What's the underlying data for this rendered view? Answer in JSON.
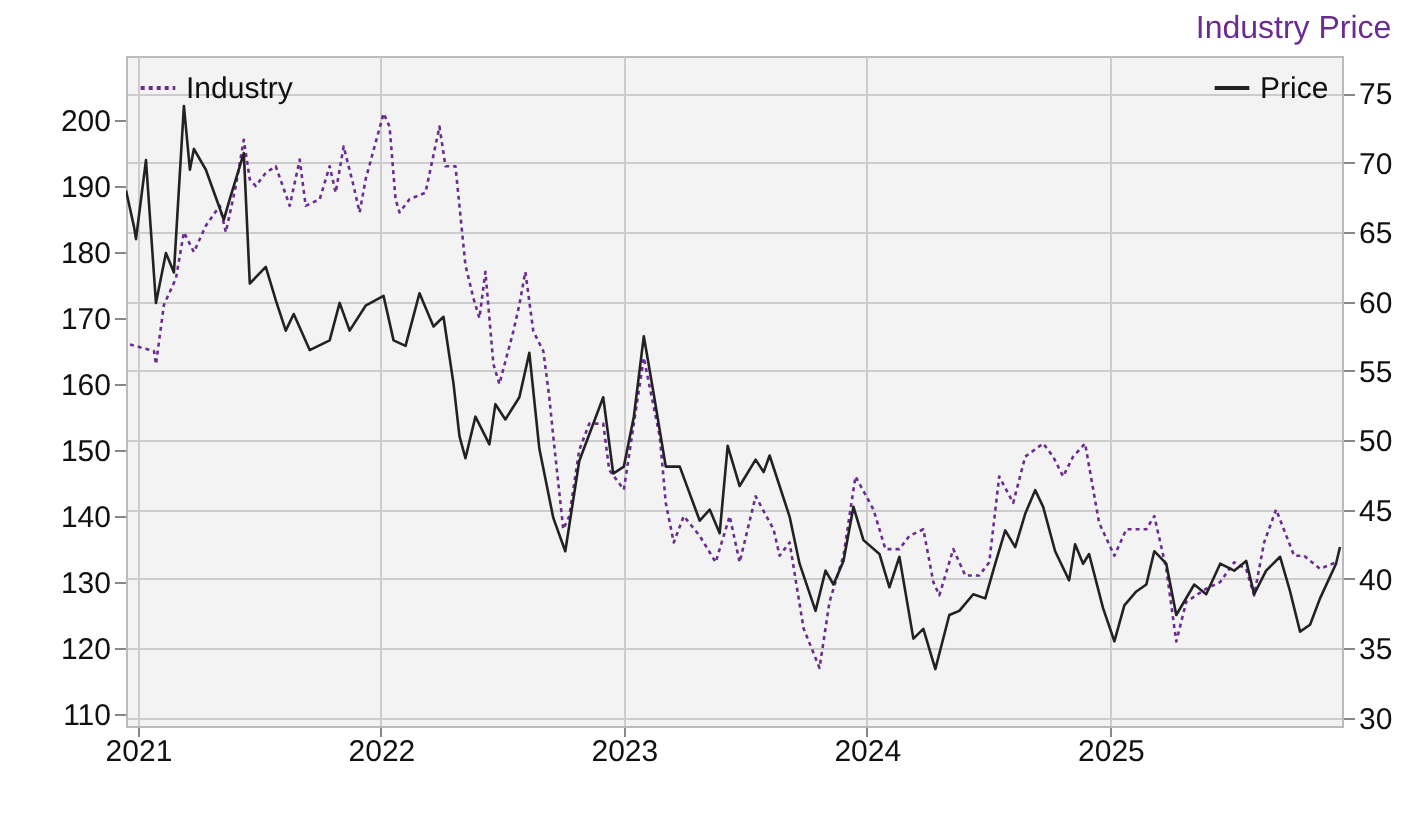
{
  "chart_data": {
    "type": "line",
    "title": "Industry Price",
    "xlim": [
      "2020-12-14",
      "2025-12-15"
    ],
    "xticks": [
      "2021",
      "2022",
      "2023",
      "2024",
      "2025"
    ],
    "ylim": [
      108.2,
      209.7
    ],
    "yticks": [
      110,
      120,
      130,
      140,
      150,
      160,
      170,
      180,
      190,
      200
    ],
    "y2lim": [
      29.4,
      77.7
    ],
    "y2ticks": [
      30,
      35,
      40,
      45,
      50,
      55,
      60,
      65,
      70,
      75
    ],
    "grid": true,
    "legend": "top",
    "marker": "none",
    "series": [
      {
        "name": "Industry",
        "color": "#6b2c91",
        "line_style": "dotted",
        "x": [
          "2020-12-20",
          "2021-01-25",
          "2021-01-28",
          "2021-02-09",
          "2021-02-27",
          "2021-03-11",
          "2021-03-26",
          "2021-04-13",
          "2021-05-04",
          "2021-05-13",
          "2021-05-28",
          "2021-06-09",
          "2021-06-18",
          "2021-06-27",
          "2021-07-12",
          "2021-07-27",
          "2021-08-17",
          "2021-09-01",
          "2021-09-10",
          "2021-10-01",
          "2021-10-16",
          "2021-10-25",
          "2021-11-06",
          "2021-11-21",
          "2021-11-30",
          "2021-12-09",
          "2022-01-05",
          "2022-01-14",
          "2022-01-23",
          "2022-01-29",
          "2022-02-13",
          "2022-03-09",
          "2022-03-30",
          "2022-04-08",
          "2022-04-23",
          "2022-05-08",
          "2022-05-20",
          "2022-05-29",
          "2022-06-07",
          "2022-06-19",
          "2022-06-28",
          "2022-07-19",
          "2022-07-28",
          "2022-08-06",
          "2022-08-18",
          "2022-09-02",
          "2022-09-11",
          "2022-09-17",
          "2022-10-02",
          "2022-10-11",
          "2022-10-26",
          "2022-11-10",
          "2022-12-01",
          "2022-12-10",
          "2023-01-01",
          "2023-01-16",
          "2023-01-31",
          "2023-02-24",
          "2023-03-05",
          "2023-03-17",
          "2023-04-01",
          "2023-04-25",
          "2023-05-19",
          "2023-06-09",
          "2023-06-24",
          "2023-07-18",
          "2023-08-14",
          "2023-08-23",
          "2023-09-07",
          "2023-09-28",
          "2023-10-22",
          "2023-11-06",
          "2023-11-27",
          "2023-12-15",
          "2024-01-11",
          "2024-01-29",
          "2024-02-19",
          "2024-03-05",
          "2024-03-26",
          "2024-04-10",
          "2024-04-19",
          "2024-05-10",
          "2024-05-28",
          "2024-06-18",
          "2024-07-03",
          "2024-07-18",
          "2024-08-08",
          "2024-08-26",
          "2024-09-22",
          "2024-10-07",
          "2024-10-22",
          "2024-11-06",
          "2024-11-24",
          "2024-12-15",
          "2025-01-07",
          "2025-01-25",
          "2025-02-24",
          "2025-03-08",
          "2025-03-26",
          "2025-04-10",
          "2025-04-25",
          "2025-05-25",
          "2025-06-15",
          "2025-07-06",
          "2025-07-24",
          "2025-08-05",
          "2025-08-20",
          "2025-09-07",
          "2025-10-04",
          "2025-10-19",
          "2025-11-12",
          "2025-12-06"
        ],
        "values": [
          166,
          165,
          163,
          172,
          176,
          183,
          180,
          184,
          187,
          183,
          190,
          197,
          191,
          190,
          192,
          193,
          187,
          194,
          187,
          188,
          193,
          189,
          196,
          190,
          186,
          191,
          201,
          199,
          188,
          186,
          188,
          189,
          199,
          193,
          193,
          178,
          173,
          170,
          177,
          163,
          160,
          168,
          172,
          177,
          168,
          165,
          158,
          152,
          138,
          140,
          150,
          154,
          154,
          147,
          144,
          154,
          164,
          152,
          142,
          136,
          140,
          137,
          133,
          140,
          133,
          143,
          138,
          134,
          136,
          123,
          117,
          127,
          134,
          146,
          141,
          135,
          135,
          137,
          138,
          130,
          128,
          135,
          131,
          131,
          133,
          146,
          142,
          149,
          151,
          149,
          146,
          149,
          151,
          139,
          134,
          138,
          138,
          140,
          132,
          121,
          127,
          129,
          130,
          133,
          132,
          128,
          136,
          141,
          134,
          134,
          132,
          133
        ]
      },
      {
        "name": "Price",
        "color": "#222222",
        "line_style": "solid",
        "axis": "y2",
        "x": [
          "2020-12-14",
          "2020-12-26",
          "2020-12-29",
          "2021-01-13",
          "2021-01-28",
          "2021-02-12",
          "2021-02-24",
          "2021-03-11",
          "2021-03-20",
          "2021-03-26",
          "2021-04-13",
          "2021-05-10",
          "2021-05-19",
          "2021-06-09",
          "2021-06-18",
          "2021-07-12",
          "2021-07-27",
          "2021-08-11",
          "2021-08-23",
          "2021-09-16",
          "2021-10-16",
          "2021-10-31",
          "2021-11-15",
          "2021-12-09",
          "2022-01-05",
          "2022-01-20",
          "2022-02-07",
          "2022-02-28",
          "2022-03-21",
          "2022-04-05",
          "2022-04-20",
          "2022-04-29",
          "2022-05-08",
          "2022-05-23",
          "2022-06-13",
          "2022-06-22",
          "2022-07-07",
          "2022-07-28",
          "2022-08-12",
          "2022-08-27",
          "2022-09-17",
          "2022-10-05",
          "2022-10-26",
          "2022-12-01",
          "2022-12-16",
          "2023-01-01",
          "2023-01-16",
          "2023-01-31",
          "2023-02-15",
          "2023-03-05",
          "2023-03-26",
          "2023-04-25",
          "2023-05-10",
          "2023-05-25",
          "2023-06-06",
          "2023-06-24",
          "2023-07-18",
          "2023-07-30",
          "2023-08-08",
          "2023-08-23",
          "2023-09-07",
          "2023-09-22",
          "2023-10-16",
          "2023-10-31",
          "2023-11-12",
          "2023-11-27",
          "2023-12-12",
          "2023-12-27",
          "2024-01-20",
          "2024-02-04",
          "2024-02-19",
          "2024-03-11",
          "2024-03-26",
          "2024-04-13",
          "2024-05-04",
          "2024-05-19",
          "2024-06-09",
          "2024-06-27",
          "2024-07-12",
          "2024-07-27",
          "2024-08-11",
          "2024-08-26",
          "2024-09-10",
          "2024-09-22",
          "2024-10-10",
          "2024-10-31",
          "2024-11-09",
          "2024-11-21",
          "2024-11-30",
          "2024-12-21",
          "2025-01-07",
          "2025-01-22",
          "2025-02-09",
          "2025-02-24",
          "2025-03-08",
          "2025-03-26",
          "2025-04-10",
          "2025-05-07",
          "2025-05-25",
          "2025-06-15",
          "2025-07-06",
          "2025-07-24",
          "2025-08-05",
          "2025-08-23",
          "2025-09-13",
          "2025-09-28",
          "2025-10-13",
          "2025-10-28",
          "2025-11-12",
          "2025-12-06",
          "2025-12-12"
        ],
        "values": [
          68,
          65.4,
          64.5,
          70.2,
          59.9,
          63.5,
          62.1,
          74.1,
          69.5,
          71,
          69.5,
          65.9,
          67.4,
          70.7,
          61.3,
          62.5,
          60.1,
          57.9,
          59.1,
          56.5,
          57.2,
          59.9,
          57.9,
          59.7,
          60.4,
          57.2,
          56.8,
          60.6,
          58.2,
          58.9,
          54.1,
          50.3,
          48.7,
          51.7,
          49.7,
          52.6,
          51.5,
          53.1,
          56.3,
          49.4,
          44.4,
          42,
          48.5,
          53.1,
          47.6,
          48.1,
          51.7,
          57.5,
          53.3,
          48.1,
          48.1,
          44.2,
          45,
          43.3,
          49.6,
          46.7,
          48.6,
          47.7,
          48.9,
          46.7,
          44.5,
          41.1,
          37.7,
          40.6,
          39.6,
          41.3,
          45.2,
          42.8,
          41.8,
          39.4,
          41.6,
          35.7,
          36.4,
          33.5,
          37.4,
          37.7,
          38.9,
          38.6,
          41.1,
          43.5,
          42.3,
          44.7,
          46.4,
          45.2,
          42,
          39.9,
          42.5,
          41.1,
          41.8,
          37.9,
          35.5,
          38.1,
          39.1,
          39.6,
          42,
          41.1,
          37.4,
          39.6,
          38.9,
          41.1,
          40.6,
          41.3,
          38.9,
          40.6,
          41.6,
          39.1,
          36.2,
          36.7,
          38.6,
          41.1,
          42.3
        ]
      }
    ]
  }
}
